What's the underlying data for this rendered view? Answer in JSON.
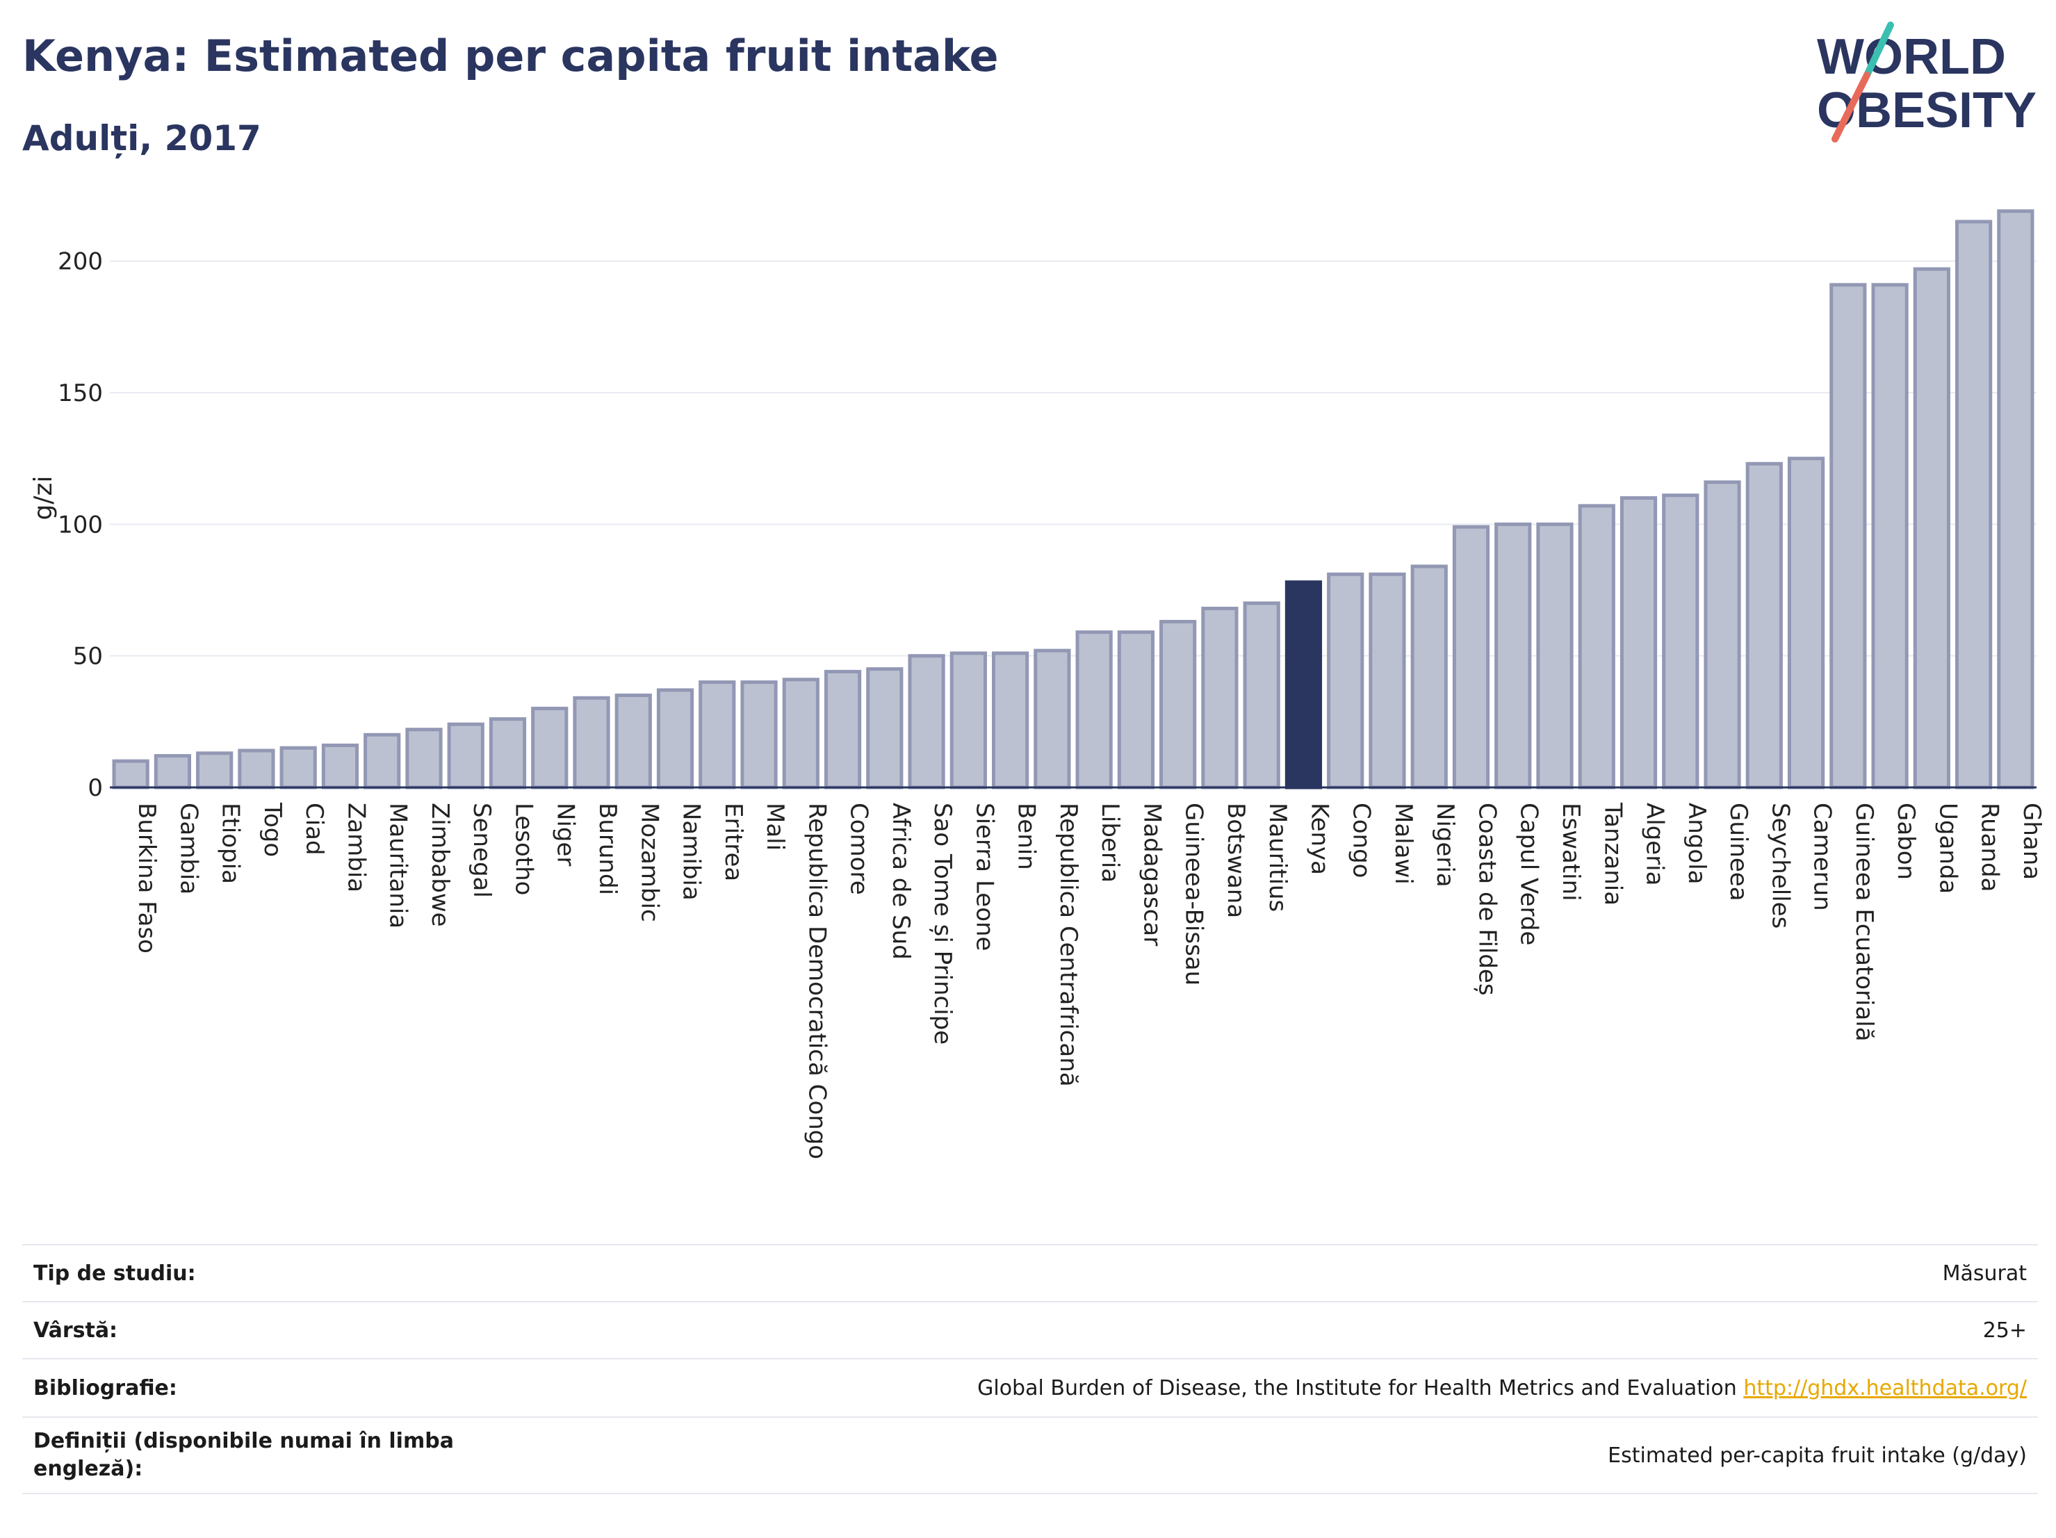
{
  "header": {
    "title": "Kenya: Estimated per capita fruit intake",
    "subtitle": "Adulți, 2017"
  },
  "logo": {
    "line1": "WORLD",
    "line2": "OBESITY"
  },
  "colors": {
    "bar": "#bcc1d1",
    "bar_border": "#9298b4",
    "highlight": "#2a3560",
    "grid": "#e8eaf0"
  },
  "chart_data": {
    "type": "bar",
    "ylabel": "g/zi",
    "ylim": [
      0,
      220
    ],
    "yticks": [
      0,
      50,
      100,
      150,
      200
    ],
    "highlight": "Kenya",
    "categories": [
      "Burkina Faso",
      "Gambia",
      "Etiopia",
      "Togo",
      "Ciad",
      "Zambia",
      "Mauritania",
      "Zimbabwe",
      "Senegal",
      "Lesotho",
      "Niger",
      "Burundi",
      "Mozambic",
      "Namibia",
      "Eritrea",
      "Mali",
      "Republica Democratică Congo",
      "Comore",
      "Africa de Sud",
      "Sao Tome și Principe",
      "Sierra Leone",
      "Benin",
      "Republica Centrafricană",
      "Liberia",
      "Madagascar",
      "Guineea-Bissau",
      "Botswana",
      "Mauritius",
      "Kenya",
      "Congo",
      "Malawi",
      "Nigeria",
      "Coasta de Fildeș",
      "Capul Verde",
      "Eswatini",
      "Tanzania",
      "Algeria",
      "Angola",
      "Guineea",
      "Seychelles",
      "Camerun",
      "Guineea Ecuatorială",
      "Gabon",
      "Uganda",
      "Ruanda",
      "Ghana"
    ],
    "values": [
      10,
      12,
      13,
      14,
      15,
      16,
      20,
      22,
      24,
      26,
      30,
      34,
      35,
      37,
      40,
      40,
      41,
      44,
      45,
      50,
      51,
      51,
      52,
      59,
      59,
      63,
      68,
      70,
      78,
      81,
      81,
      84,
      99,
      100,
      100,
      107,
      110,
      111,
      116,
      123,
      125,
      191,
      191,
      197,
      215,
      219
    ]
  },
  "info": {
    "rows": [
      {
        "label": "Tip de studiu:",
        "value": "Măsurat"
      },
      {
        "label": "Vârstă:",
        "value": "25+"
      },
      {
        "label": "Bibliografie:",
        "value": "Global Burden of Disease, the Institute for Health Metrics and Evaluation",
        "link": "http://ghdx.healthdata.org/"
      },
      {
        "label": "Definiții (disponibile numai în limba engleză):",
        "value": "Estimated per-capita fruit intake (g/day)"
      }
    ]
  }
}
